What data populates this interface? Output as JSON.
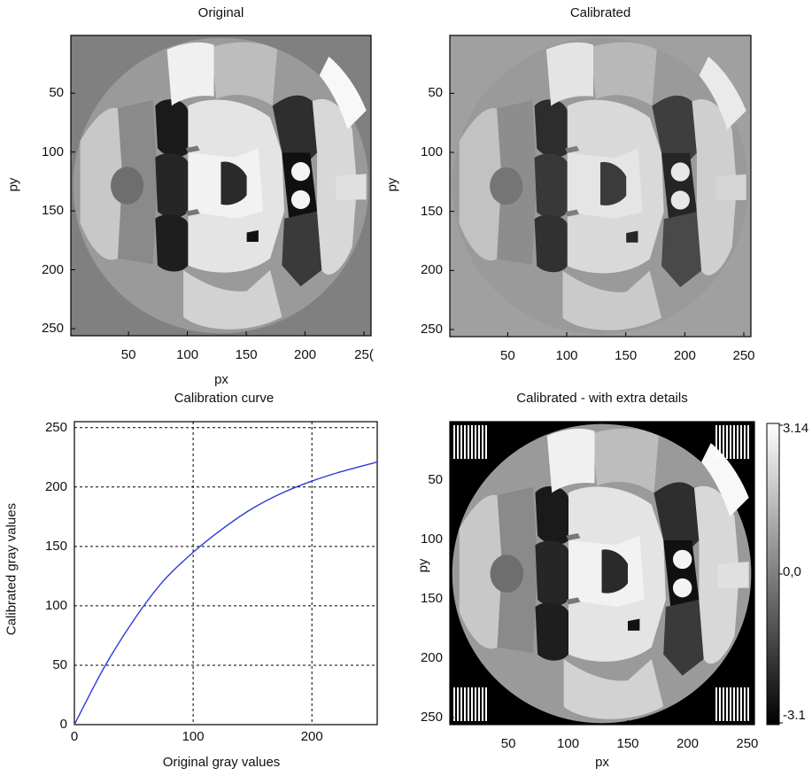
{
  "chart_data": [
    {
      "type": "heatmap",
      "title": "Original",
      "xlabel": "px",
      "ylabel": "py",
      "xlim": [
        1,
        256
      ],
      "ylim": [
        256,
        1
      ],
      "xticks": [
        "50",
        "100",
        "150",
        "200",
        "25("
      ],
      "yticks": [
        "50",
        "100",
        "150",
        "200",
        "250"
      ],
      "colormap": "gray"
    },
    {
      "type": "heatmap",
      "title": "Calibrated",
      "xlabel": "",
      "ylabel": "py",
      "xlim": [
        1,
        256
      ],
      "ylim": [
        256,
        1
      ],
      "xticks": [
        "50",
        "100",
        "150",
        "200",
        "250"
      ],
      "yticks": [
        "50",
        "100",
        "150",
        "200",
        "250"
      ],
      "colormap": "gray"
    },
    {
      "type": "line",
      "title": "Calibration curve",
      "xlabel": "Original gray values",
      "ylabel": "Calibrated gray values",
      "xlim": [
        0,
        255
      ],
      "ylim": [
        0,
        255
      ],
      "grid": true,
      "xticks": [
        "0",
        "100",
        "200"
      ],
      "yticks": [
        "0",
        "50",
        "100",
        "150",
        "200",
        "250"
      ],
      "series": [
        {
          "color": "#2b3bd6",
          "x": [
            0,
            25,
            50,
            75,
            100,
            125,
            150,
            175,
            200,
            225,
            255
          ],
          "y": [
            0,
            48,
            88,
            121,
            145,
            165,
            182,
            195,
            205,
            213,
            221
          ]
        }
      ]
    },
    {
      "type": "heatmap",
      "title": "Calibrated - with extra details",
      "xlabel": "px",
      "ylabel": "py",
      "xlim": [
        1,
        256
      ],
      "ylim": [
        256,
        1
      ],
      "xticks": [
        "50",
        "100",
        "150",
        "200",
        "250"
      ],
      "yticks": [
        "50",
        "100",
        "150",
        "200",
        "250"
      ],
      "colormap": "gray",
      "colorbar": {
        "labels": [
          "3.14",
          "0,0",
          "-3.1"
        ],
        "range": [
          -3.14,
          3.14
        ]
      }
    }
  ]
}
